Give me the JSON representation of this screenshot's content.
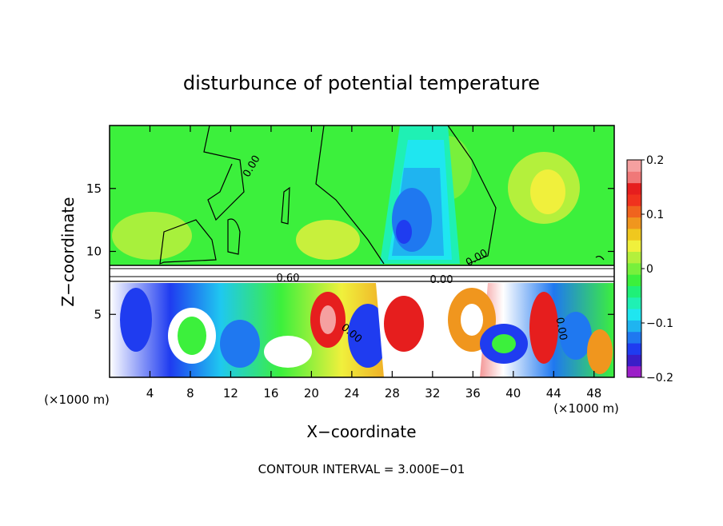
{
  "chart_data": {
    "type": "heatmap",
    "title": "disturbunce of potential temperature",
    "xlabel": "X−coordinate",
    "ylabel": "Z−coordinate",
    "x_unit_label_left": "(×1000 m)",
    "x_unit_label_right": "(×1000 m)",
    "footer": "CONTOUR INTERVAL = 3.000E−01",
    "xlim": [
      0,
      50
    ],
    "ylim": [
      0,
      20
    ],
    "x_ticks": [
      4,
      8,
      12,
      16,
      20,
      24,
      28,
      32,
      36,
      40,
      44,
      48
    ],
    "x_tick_labels": [
      "4",
      "8",
      "12",
      "16",
      "20",
      "24",
      "28",
      "32",
      "36",
      "40",
      "44",
      "48"
    ],
    "y_ticks": [
      5,
      10,
      15
    ],
    "y_tick_labels": [
      "5",
      "10",
      "15"
    ],
    "colorbar": {
      "range": [
        -0.2,
        0.2
      ],
      "tick_labels": [
        "0.2",
        "0.1",
        "0",
        "−0.1",
        "−0.2"
      ],
      "tick_values": [
        0.2,
        0.1,
        0,
        -0.1,
        -0.2
      ],
      "colors": [
        "#9b1fc8",
        "#3a1ec8",
        "#1f3cf0",
        "#1f78f0",
        "#1fb4f0",
        "#1fe6f0",
        "#1ff0b4",
        "#1ff078",
        "#3cf03c",
        "#78f03c",
        "#b4f03c",
        "#f0f03c",
        "#f0c81e",
        "#f0961e",
        "#f0641e",
        "#f0321e",
        "#e61e1e",
        "#f07878",
        "#f5a0a0"
      ]
    },
    "contour_labels": [
      "0.00",
      "0.60",
      "0.00",
      "0.00",
      "0.00",
      "0.00"
    ]
  }
}
